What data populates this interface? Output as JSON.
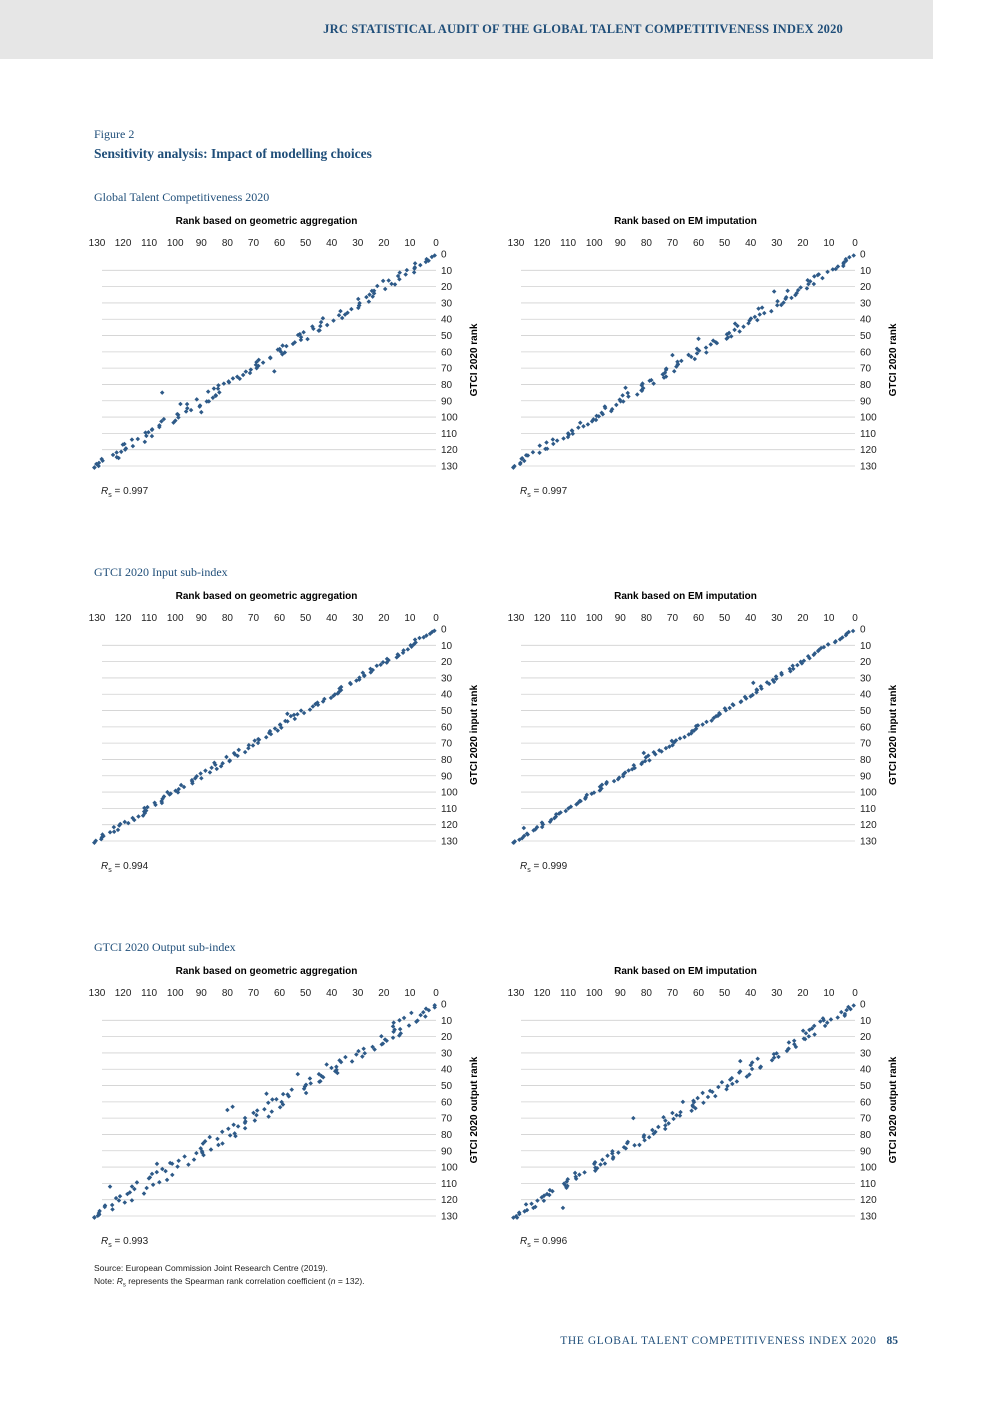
{
  "header": {
    "title": "JRC STATISTICAL AUDIT OF THE GLOBAL TALENT COMPETITIVENESS INDEX 2020"
  },
  "figure": {
    "label": "Figure 2",
    "title": "Sensitivity analysis: Impact of modelling choices"
  },
  "sections": [
    {
      "title": "Global Talent Competitiveness 2020"
    },
    {
      "title": "GTCI 2020 Input sub-index"
    },
    {
      "title": "GTCI 2020 Output sub-index"
    }
  ],
  "chart_data": [
    {
      "type": "scatter",
      "title": "Rank based on geometric aggregation",
      "ylabel": "GTCI 2020 rank",
      "xlim": [
        130,
        0
      ],
      "ylim": [
        0,
        130
      ],
      "xticks": [
        130,
        120,
        110,
        100,
        90,
        80,
        70,
        60,
        50,
        40,
        30,
        20,
        10,
        0
      ],
      "yticks": [
        0,
        10,
        20,
        30,
        40,
        50,
        60,
        70,
        80,
        90,
        100,
        110,
        120,
        130
      ],
      "n": 132,
      "spread": 3.5,
      "seed": 11,
      "outliers": [
        [
          105,
          85
        ],
        [
          90,
          97
        ],
        [
          98,
          92
        ],
        [
          62,
          72
        ],
        [
          45,
          47
        ]
      ],
      "rs_symbol": "R",
      "rs_sub": "s",
      "rs_value": "= 0.997"
    },
    {
      "type": "scatter",
      "title": "Rank based on EM imputation",
      "ylabel": "GTCI 2020 rank",
      "xlim": [
        130,
        0
      ],
      "ylim": [
        0,
        130
      ],
      "xticks": [
        130,
        120,
        110,
        100,
        90,
        80,
        70,
        60,
        50,
        40,
        30,
        20,
        10,
        0
      ],
      "yticks": [
        0,
        10,
        20,
        30,
        40,
        50,
        60,
        70,
        80,
        90,
        100,
        110,
        120,
        130
      ],
      "n": 132,
      "spread": 3.0,
      "seed": 23,
      "outliers": [
        [
          70,
          62
        ],
        [
          60,
          52
        ],
        [
          88,
          82
        ],
        [
          31,
          23
        ],
        [
          110,
          110
        ]
      ],
      "rs_symbol": "R",
      "rs_sub": "s",
      "rs_value": "= 0.997"
    },
    {
      "type": "scatter",
      "title": "Rank based on geometric aggregation",
      "ylabel": "GTCI 2020 input rank",
      "xlim": [
        130,
        0
      ],
      "ylim": [
        0,
        130
      ],
      "xticks": [
        130,
        120,
        110,
        100,
        90,
        80,
        70,
        60,
        50,
        40,
        30,
        20,
        10,
        0
      ],
      "yticks": [
        0,
        10,
        20,
        30,
        40,
        50,
        60,
        70,
        80,
        90,
        100,
        110,
        120,
        130
      ],
      "n": 132,
      "spread": 2.0,
      "seed": 37,
      "outliers": [
        [
          103,
          100
        ],
        [
          85,
          82
        ],
        [
          57,
          52
        ]
      ],
      "rs_symbol": "R",
      "rs_sub": "s",
      "rs_value": "= 0.994"
    },
    {
      "type": "scatter",
      "title": "Rank based on EM imputation",
      "ylabel": "GTCI 2020 input rank",
      "xlim": [
        130,
        0
      ],
      "ylim": [
        0,
        130
      ],
      "xticks": [
        130,
        120,
        110,
        100,
        90,
        80,
        70,
        60,
        50,
        40,
        30,
        20,
        10,
        0
      ],
      "yticks": [
        0,
        10,
        20,
        30,
        40,
        50,
        60,
        70,
        80,
        90,
        100,
        110,
        120,
        130
      ],
      "n": 132,
      "spread": 1.3,
      "seed": 41,
      "outliers": [
        [
          39,
          33
        ],
        [
          81,
          76
        ],
        [
          127,
          122
        ]
      ],
      "rs_symbol": "R",
      "rs_sub": "s",
      "rs_value": "= 0.999"
    },
    {
      "type": "scatter",
      "title": "Rank based on geometric aggregation",
      "ylabel": "GTCI 2020 output rank",
      "xlim": [
        130,
        0
      ],
      "ylim": [
        0,
        130
      ],
      "xticks": [
        130,
        120,
        110,
        100,
        90,
        80,
        70,
        60,
        50,
        40,
        30,
        20,
        10,
        0
      ],
      "yticks": [
        0,
        10,
        20,
        30,
        40,
        50,
        60,
        70,
        80,
        90,
        100,
        110,
        120,
        130
      ],
      "n": 132,
      "spread": 5.0,
      "seed": 53,
      "outliers": [
        [
          14,
          10
        ],
        [
          53,
          43
        ],
        [
          80,
          65
        ],
        [
          65,
          55
        ],
        [
          125,
          112
        ],
        [
          107,
          98
        ],
        [
          78,
          63
        ]
      ],
      "rs_symbol": "R",
      "rs_sub": "s",
      "rs_value": "= 0.993"
    },
    {
      "type": "scatter",
      "title": "Rank based on EM imputation",
      "ylabel": "GTCI 2020 output rank",
      "xlim": [
        130,
        0
      ],
      "ylim": [
        0,
        130
      ],
      "xticks": [
        130,
        120,
        110,
        100,
        90,
        80,
        70,
        60,
        50,
        40,
        30,
        20,
        10,
        0
      ],
      "yticks": [
        0,
        10,
        20,
        30,
        40,
        50,
        60,
        70,
        80,
        90,
        100,
        110,
        120,
        130
      ],
      "n": 132,
      "spread": 3.5,
      "seed": 67,
      "outliers": [
        [
          12,
          10
        ],
        [
          44,
          35
        ],
        [
          85,
          70
        ],
        [
          112,
          125
        ],
        [
          100,
          98
        ],
        [
          66,
          60
        ]
      ],
      "rs_symbol": "R",
      "rs_sub": "s",
      "rs_value": "= 0.996"
    }
  ],
  "notes": {
    "source": "Source: European Commission Joint Research Centre (2019).",
    "note_prefix": "Note: ",
    "note_symbol": "R",
    "note_sub": "s",
    "note_text": " represents the Spearman rank correlation coefficient (",
    "note_n": "n",
    "note_end": " = 132)."
  },
  "footer": {
    "text": "THE GLOBAL TALENT COMPETITIVENESS INDEX 2020",
    "page": "85"
  }
}
